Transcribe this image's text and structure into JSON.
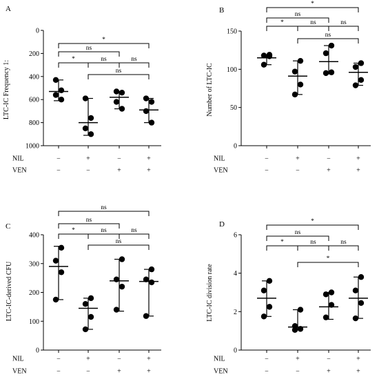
{
  "chart_data": [
    {
      "type": "scatter",
      "panel_label": "A",
      "ylabel": "LTC-IC Frequency 1:",
      "ylim": [
        1000,
        0
      ],
      "y_inverted": true,
      "yticks": [
        "0",
        "200",
        "400",
        "600",
        "800",
        "1000"
      ],
      "ytick_values": [
        0,
        200,
        400,
        600,
        800,
        1000
      ],
      "groups": [
        {
          "points": [
            430,
            520,
            560,
            600
          ],
          "mean": 530,
          "range": [
            430,
            610
          ]
        },
        {
          "points": [
            590,
            760,
            850,
            900
          ],
          "mean": 800,
          "range": [
            590,
            910
          ]
        },
        {
          "points": [
            530,
            540,
            620,
            680
          ],
          "mean": 580,
          "range": [
            530,
            680
          ]
        },
        {
          "points": [
            590,
            620,
            700,
            800
          ],
          "mean": 690,
          "range": [
            590,
            800
          ]
        }
      ],
      "brackets": [
        {
          "from": 0,
          "to": 3,
          "label": "*",
          "level": 1
        },
        {
          "from": 0,
          "to": 2,
          "label": "ns",
          "level": 2
        },
        {
          "from": 0,
          "to": 1,
          "label": "*",
          "level": 3
        },
        {
          "from": 1,
          "to": 2,
          "label": "ns",
          "level": 3
        },
        {
          "from": 2,
          "to": 3,
          "label": "ns",
          "level": 3
        },
        {
          "from": 1,
          "to": 3,
          "label": "ns",
          "level": 4
        }
      ]
    },
    {
      "type": "scatter",
      "panel_label": "B",
      "ylabel": "Number of LTC-IC",
      "ylim": [
        0,
        150
      ],
      "y_inverted": false,
      "yticks": [
        "0",
        "50",
        "100",
        "150"
      ],
      "ytick_values": [
        0,
        50,
        100,
        150
      ],
      "groups": [
        {
          "points": [
            106,
            117,
            118,
            119
          ],
          "mean": 115,
          "range": [
            106,
            119
          ]
        },
        {
          "points": [
            67,
            80,
            97,
            111
          ],
          "mean": 91,
          "range": [
            67,
            111
          ]
        },
        {
          "points": [
            95,
            96,
            121,
            131
          ],
          "mean": 110,
          "range": [
            94,
            131
          ]
        },
        {
          "points": [
            79,
            86,
            103,
            108
          ],
          "mean": 96,
          "range": [
            79,
            108
          ]
        }
      ],
      "brackets": [
        {
          "from": 0,
          "to": 3,
          "label": "*",
          "level": 1
        },
        {
          "from": 0,
          "to": 2,
          "label": "ns",
          "level": 2
        },
        {
          "from": 0,
          "to": 1,
          "label": "*",
          "level": 3
        },
        {
          "from": 1,
          "to": 2,
          "label": "ns",
          "level": 3
        },
        {
          "from": 2,
          "to": 3,
          "label": "ns",
          "level": 3
        },
        {
          "from": 1,
          "to": 3,
          "label": "ns",
          "level": 4
        }
      ]
    },
    {
      "type": "scatter",
      "panel_label": "C",
      "ylabel": "LTC-IC-derived CFU",
      "ylim": [
        0,
        400
      ],
      "y_inverted": false,
      "yticks": [
        "0",
        "100",
        "200",
        "300",
        "400"
      ],
      "ytick_values": [
        0,
        100,
        200,
        300,
        400
      ],
      "groups": [
        {
          "points": [
            175,
            270,
            310,
            355
          ],
          "mean": 290,
          "range": [
            175,
            360
          ]
        },
        {
          "points": [
            72,
            115,
            160,
            180
          ],
          "mean": 145,
          "range": [
            72,
            180
          ]
        },
        {
          "points": [
            140,
            220,
            245,
            315
          ],
          "mean": 240,
          "range": [
            135,
            315
          ]
        },
        {
          "points": [
            118,
            235,
            245,
            280
          ],
          "mean": 238,
          "range": [
            118,
            280
          ]
        }
      ],
      "brackets": [
        {
          "from": 0,
          "to": 3,
          "label": "ns",
          "level": 1
        },
        {
          "from": 0,
          "to": 2,
          "label": "ns",
          "level": 2
        },
        {
          "from": 0,
          "to": 1,
          "label": "*",
          "level": 3
        },
        {
          "from": 1,
          "to": 2,
          "label": "ns",
          "level": 3
        },
        {
          "from": 2,
          "to": 3,
          "label": "ns",
          "level": 3
        },
        {
          "from": 1,
          "to": 3,
          "label": "ns",
          "level": 4
        }
      ]
    },
    {
      "type": "scatter",
      "panel_label": "D",
      "ylabel": "LTC-IC division rate",
      "ylim": [
        0,
        6
      ],
      "y_inverted": false,
      "yticks": [
        "0",
        "2",
        "4",
        "6"
      ],
      "ytick_values": [
        0,
        2,
        4,
        6
      ],
      "groups": [
        {
          "points": [
            1.75,
            2.25,
            3.1,
            3.6
          ],
          "mean": 2.7,
          "range": [
            1.75,
            3.6
          ]
        },
        {
          "points": [
            1.05,
            1.1,
            1.25,
            2.1
          ],
          "mean": 1.2,
          "range": [
            1.05,
            2.1
          ]
        },
        {
          "points": [
            1.7,
            2.35,
            2.9,
            3.0
          ],
          "mean": 2.25,
          "range": [
            1.6,
            3.0
          ]
        },
        {
          "points": [
            1.65,
            2.45,
            3.1,
            3.8
          ],
          "mean": 2.7,
          "range": [
            1.65,
            3.8
          ]
        }
      ],
      "brackets": [
        {
          "from": 0,
          "to": 3,
          "label": "*",
          "level": 1
        },
        {
          "from": 0,
          "to": 2,
          "label": "ns",
          "level": 2
        },
        {
          "from": 0,
          "to": 1,
          "label": "*",
          "level": 3
        },
        {
          "from": 1,
          "to": 2,
          "label": "ns",
          "level": 3
        },
        {
          "from": 2,
          "to": 3,
          "label": "ns",
          "level": 3
        },
        {
          "from": 1,
          "to": 3,
          "label": "*",
          "level": 4
        }
      ]
    }
  ],
  "conditions": {
    "row_labels": [
      "NIL",
      "VEN"
    ],
    "nil": [
      "−",
      "+",
      "−",
      "+"
    ],
    "ven": [
      "−",
      "−",
      "+",
      "+"
    ]
  }
}
